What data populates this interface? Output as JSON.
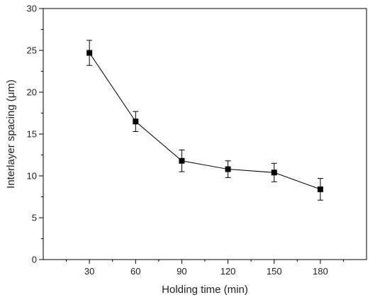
{
  "chart_data": {
    "type": "line",
    "title": "",
    "xlabel": "Holding time (min)",
    "ylabel": "Interlayer spacing (μm)",
    "x": [
      30,
      60,
      90,
      120,
      150,
      180
    ],
    "x_tick_labels": [
      "30",
      "60",
      "90",
      "120",
      "150",
      "180"
    ],
    "xlim": [
      0,
      210
    ],
    "ylim": [
      0,
      30
    ],
    "y_ticks": [
      0,
      5,
      10,
      15,
      20,
      25,
      30
    ],
    "y_tick_labels": [
      "0",
      "5",
      "10",
      "15",
      "20",
      "25",
      "30"
    ],
    "grid": false,
    "legend": "none",
    "series": [
      {
        "values": [
          24.7,
          16.5,
          11.8,
          10.8,
          10.4,
          8.4
        ],
        "errors": [
          1.5,
          1.2,
          1.3,
          1.0,
          1.1,
          1.3
        ],
        "marker": "square",
        "color": "#000000"
      }
    ]
  }
}
